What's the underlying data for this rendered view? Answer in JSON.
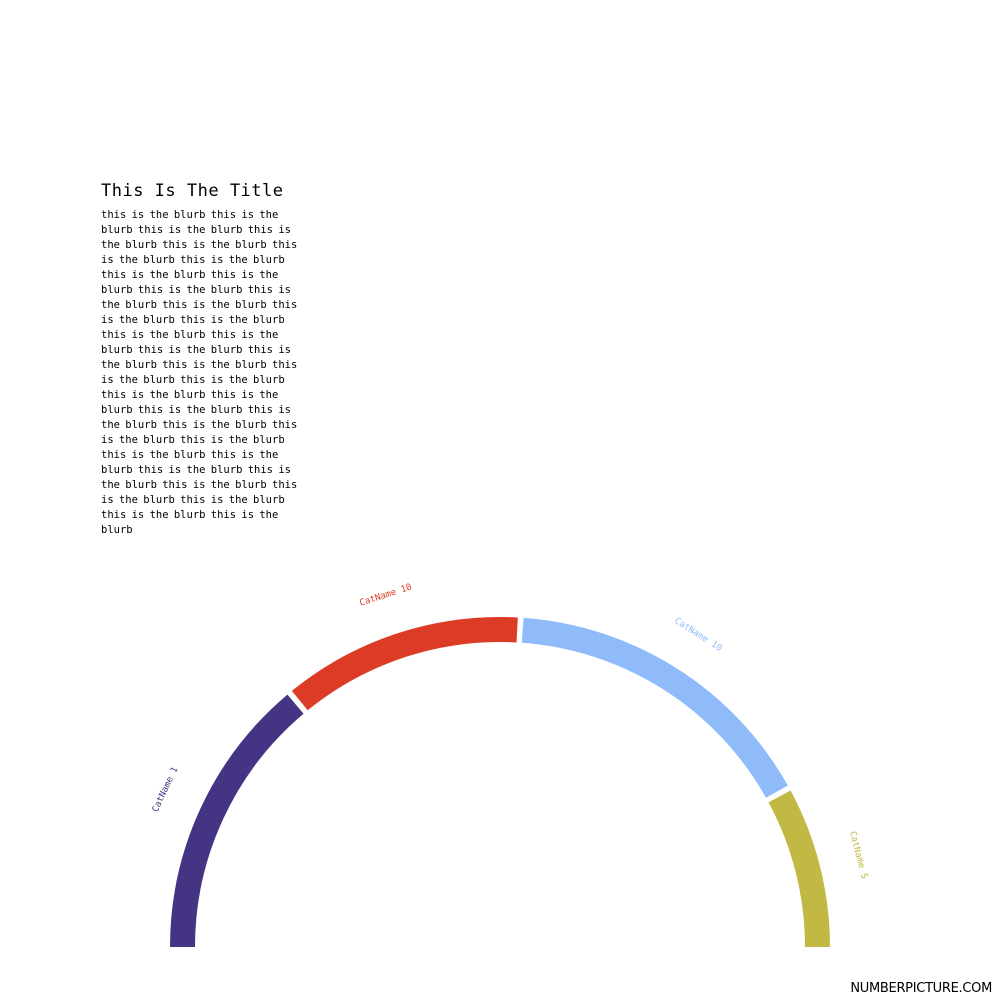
{
  "title": "This Is The Title",
  "blurb": "this is the blurb this is the blurb this is the blurb this is the blurb this is the blurb this is the blurb this is the blurb this is the blurb this is the blurb this is the blurb this is the blurb this is the blurb this is the blurb this is the blurb this is the blurb this is the blurb this is the blurb this is the blurb this is the blurb this is the blurb this is the blurb this is the blurb this is the blurb this is the blurb this is the blurb this is the blurb this is the blurb this is the blurb this is the blurb this is the blurb this is the blurb this is the blurb this is the blurb this is the blurb this is the blurb this is the blurb this is the blurb",
  "brand": "NUMBERPICTURE.COM",
  "chart_data": {
    "type": "pie",
    "variant": "half-donut arc",
    "title": "This Is The Title",
    "categories": [
      "CatName 1",
      "CatName 10",
      "CatName 10",
      "CatName 5"
    ],
    "values": [
      7,
      6,
      8,
      4
    ],
    "colors": [
      "#453383",
      "#dc3c26",
      "#8fbbfa",
      "#c1b943"
    ]
  }
}
